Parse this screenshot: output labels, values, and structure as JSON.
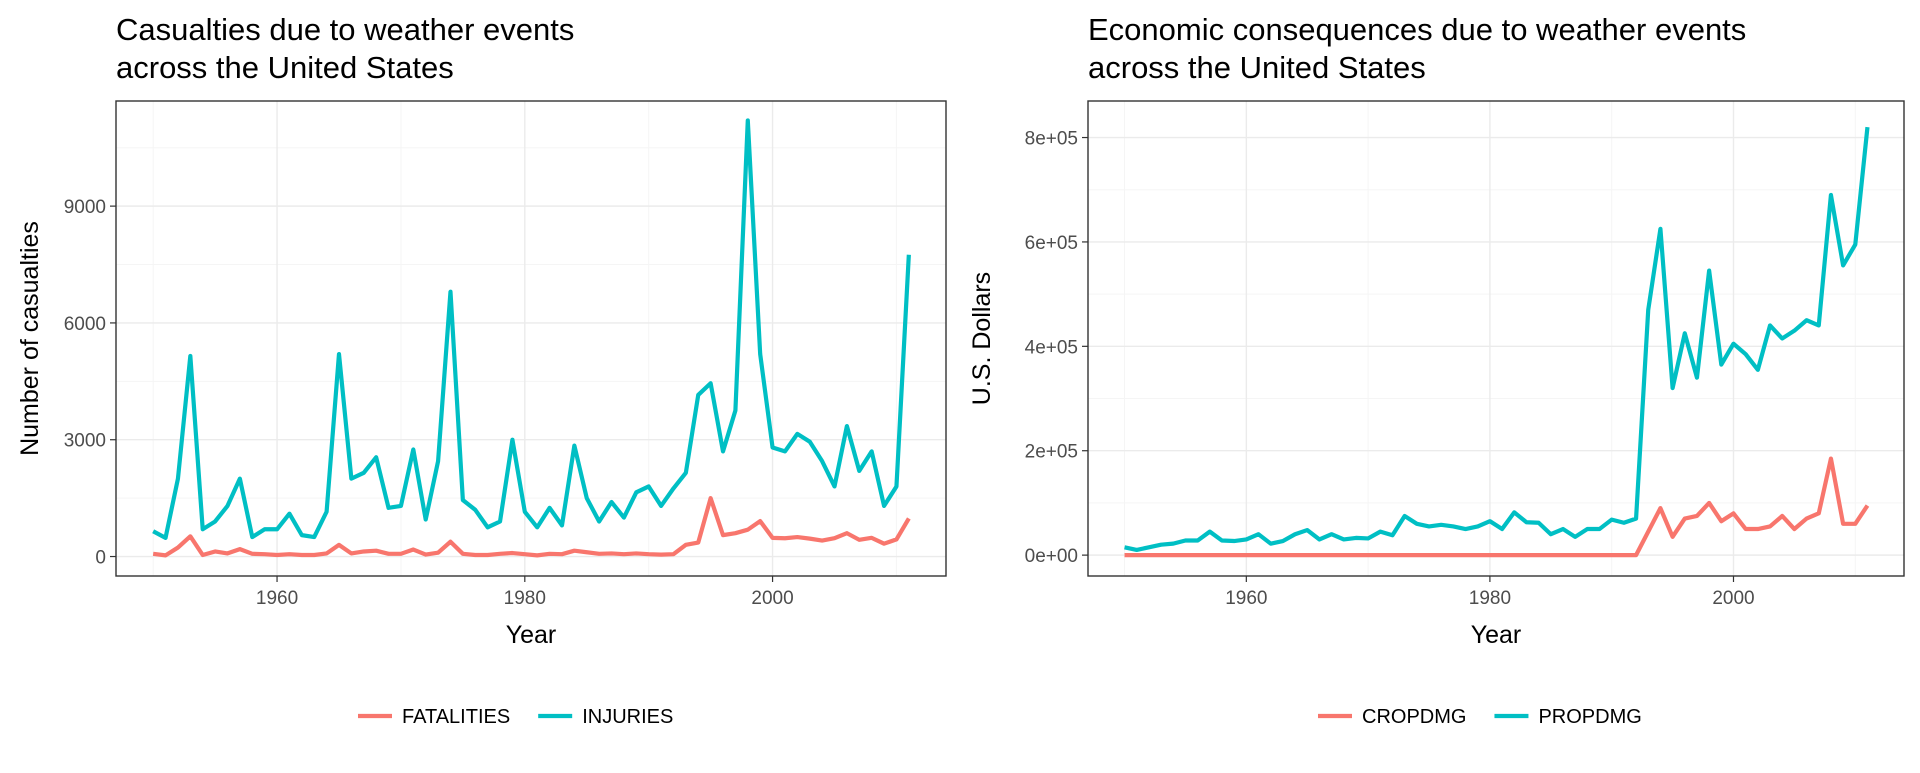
{
  "chart_data": [
    {
      "type": "line",
      "title_lines": [
        "Casualties due to weather events",
        "across the United States"
      ],
      "xlabel": "Year",
      "ylabel": "Number of casualties",
      "xlim": [
        1947,
        2014
      ],
      "ylim": [
        -500,
        11700
      ],
      "x_ticks": [
        1960,
        1980,
        2000
      ],
      "x_tick_labels": [
        "1960",
        "1980",
        "2000"
      ],
      "y_ticks": [
        0,
        3000,
        6000,
        9000
      ],
      "y_tick_labels": [
        "0",
        "3000",
        "6000",
        "9000"
      ],
      "grid": true,
      "legend_position": "bottom",
      "x": [
        1950,
        1951,
        1952,
        1953,
        1954,
        1955,
        1956,
        1957,
        1958,
        1959,
        1960,
        1961,
        1962,
        1963,
        1964,
        1965,
        1966,
        1967,
        1968,
        1969,
        1970,
        1971,
        1972,
        1973,
        1974,
        1975,
        1976,
        1977,
        1978,
        1979,
        1980,
        1981,
        1982,
        1983,
        1984,
        1985,
        1986,
        1987,
        1988,
        1989,
        1990,
        1991,
        1992,
        1993,
        1994,
        1995,
        1996,
        1997,
        1998,
        1999,
        2000,
        2001,
        2002,
        2003,
        2004,
        2005,
        2006,
        2007,
        2008,
        2009,
        2010,
        2011
      ],
      "series": [
        {
          "name": "FATALITIES",
          "color": "#F8766D",
          "values": [
            70,
            30,
            230,
            520,
            40,
            130,
            80,
            190,
            70,
            60,
            40,
            60,
            40,
            40,
            80,
            300,
            80,
            130,
            150,
            70,
            70,
            180,
            50,
            100,
            380,
            70,
            40,
            40,
            70,
            90,
            60,
            30,
            70,
            60,
            150,
            110,
            70,
            80,
            60,
            80,
            60,
            50,
            60,
            300,
            360,
            1500,
            550,
            600,
            690,
            910,
            480,
            470,
            500,
            460,
            410,
            470,
            600,
            430,
            480,
            330,
            440,
            980
          ]
        },
        {
          "name": "INJURIES",
          "color": "#00BFC4",
          "values": [
            650,
            480,
            2000,
            5150,
            700,
            900,
            1300,
            2000,
            500,
            700,
            700,
            1100,
            550,
            500,
            1150,
            5200,
            2000,
            2150,
            2550,
            1250,
            1300,
            2750,
            950,
            2450,
            6800,
            1450,
            1200,
            750,
            900,
            3000,
            1150,
            750,
            1250,
            800,
            2850,
            1500,
            900,
            1400,
            1000,
            1650,
            1800,
            1300,
            1750,
            2150,
            4150,
            4450,
            2700,
            3750,
            11200,
            5200,
            2800,
            2700,
            3150,
            2950,
            2450,
            1800,
            3350,
            2200,
            2700,
            1300,
            1800,
            7750
          ]
        }
      ]
    },
    {
      "type": "line",
      "title_lines": [
        "Economic consequences due to weather events",
        "across the United States"
      ],
      "xlabel": "Year",
      "ylabel": "U.S. Dollars",
      "xlim": [
        1947,
        2014
      ],
      "ylim": [
        -40000,
        870000
      ],
      "x_ticks": [
        1960,
        1980,
        2000
      ],
      "x_tick_labels": [
        "1960",
        "1980",
        "2000"
      ],
      "y_ticks": [
        0,
        200000,
        400000,
        600000,
        800000
      ],
      "y_tick_labels": [
        "0e+00",
        "2e+05",
        "4e+05",
        "6e+05",
        "8e+05"
      ],
      "grid": true,
      "legend_position": "bottom",
      "x": [
        1950,
        1951,
        1952,
        1953,
        1954,
        1955,
        1956,
        1957,
        1958,
        1959,
        1960,
        1961,
        1962,
        1963,
        1964,
        1965,
        1966,
        1967,
        1968,
        1969,
        1970,
        1971,
        1972,
        1973,
        1974,
        1975,
        1976,
        1977,
        1978,
        1979,
        1980,
        1981,
        1982,
        1983,
        1984,
        1985,
        1986,
        1987,
        1988,
        1989,
        1990,
        1991,
        1992,
        1993,
        1994,
        1995,
        1996,
        1997,
        1998,
        1999,
        2000,
        2001,
        2002,
        2003,
        2004,
        2005,
        2006,
        2007,
        2008,
        2009,
        2010,
        2011
      ],
      "series": [
        {
          "name": "CROPDMG",
          "color": "#F8766D",
          "values": [
            0,
            0,
            0,
            0,
            0,
            0,
            0,
            0,
            0,
            0,
            0,
            0,
            0,
            0,
            0,
            0,
            0,
            0,
            0,
            0,
            0,
            0,
            0,
            0,
            0,
            0,
            0,
            0,
            0,
            0,
            0,
            0,
            0,
            0,
            0,
            0,
            0,
            0,
            0,
            0,
            0,
            0,
            0,
            45000,
            90000,
            35000,
            70000,
            75000,
            100000,
            65000,
            80000,
            50000,
            50000,
            55000,
            75000,
            50000,
            70000,
            80000,
            185000,
            60000,
            60000,
            95000
          ]
        },
        {
          "name": "PROPDMG",
          "color": "#00BFC4",
          "values": [
            15000,
            10000,
            15000,
            20000,
            22000,
            28000,
            28000,
            45000,
            28000,
            27000,
            30000,
            40000,
            22000,
            27000,
            40000,
            48000,
            30000,
            40000,
            30000,
            33000,
            32000,
            45000,
            38000,
            75000,
            60000,
            55000,
            58000,
            55000,
            50000,
            55000,
            65000,
            50000,
            82000,
            63000,
            62000,
            40000,
            50000,
            35000,
            50000,
            50000,
            68000,
            62000,
            70000,
            470000,
            625000,
            320000,
            425000,
            340000,
            545000,
            365000,
            405000,
            385000,
            355000,
            440000,
            415000,
            430000,
            450000,
            440000,
            690000,
            555000,
            595000,
            820000
          ]
        }
      ]
    }
  ]
}
